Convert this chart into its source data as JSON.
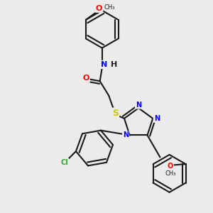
{
  "bg_color": "#ebebeb",
  "bond_color": "#1a1a1a",
  "atom_colors": {
    "N": "#0000ff",
    "O": "#ff0000",
    "S": "#cccc00",
    "Cl": "#33aa33",
    "H": "#1a1a1a",
    "C": "#1a1a1a"
  },
  "font_size": 8,
  "figsize": [
    3.0,
    3.0
  ],
  "dpi": 100,
  "lw": 1.5
}
